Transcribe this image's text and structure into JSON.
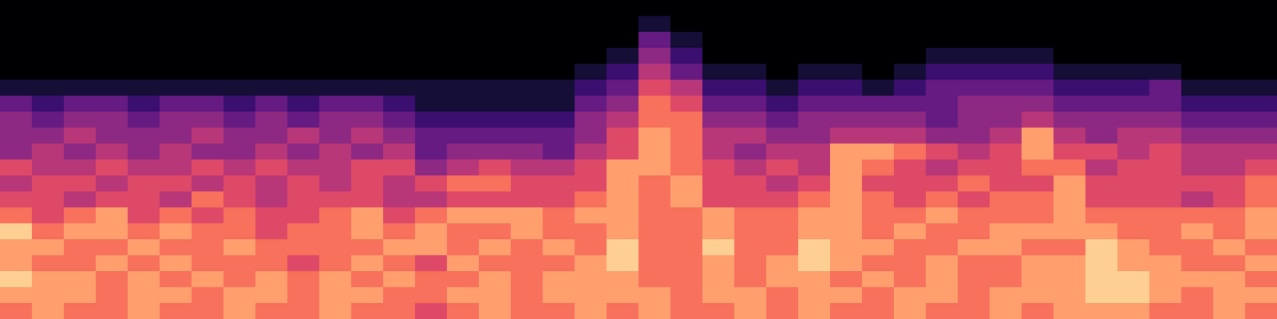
{
  "chart_data": {
    "type": "heatmap",
    "color": "magma",
    "zlim": [
      0,
      10
    ],
    "tick_labels": false,
    "cells": [
      [
        7,
        8,
        7,
        7,
        8,
        7,
        7,
        8,
        7,
        7,
        8,
        7,
        7,
        6,
        7,
        8,
        7,
        7,
        8,
        7,
        8,
        7,
        7,
        8,
        7,
        8,
        7,
        7,
        8,
        7,
        7,
        8,
        7,
        8,
        8,
        8,
        7,
        7,
        8,
        7
      ],
      [
        8,
        8,
        8,
        7,
        8,
        8,
        7,
        8,
        8,
        7,
        8,
        8,
        7,
        7,
        8,
        8,
        7,
        8,
        8,
        8,
        8,
        7,
        8,
        8,
        7,
        8,
        8,
        7,
        8,
        8,
        7,
        8,
        8,
        8,
        9,
        9,
        8,
        7,
        8,
        8
      ],
      [
        9,
        8,
        8,
        7,
        8,
        7,
        8,
        7,
        8,
        7,
        8,
        7,
        8,
        7,
        7,
        8,
        7,
        8,
        8,
        8,
        7,
        7,
        8,
        7,
        8,
        8,
        7,
        8,
        7,
        8,
        7,
        7,
        8,
        8,
        9,
        9,
        8,
        8,
        8,
        7
      ],
      [
        8,
        7,
        7,
        8,
        7,
        8,
        7,
        7,
        7,
        6,
        7,
        8,
        7,
        6,
        8,
        7,
        7,
        7,
        8,
        9,
        7,
        7,
        8,
        7,
        8,
        9,
        8,
        7,
        7,
        8,
        7,
        7,
        8,
        8,
        9,
        8,
        8,
        7,
        7,
        8
      ],
      [
        8,
        8,
        7,
        7,
        8,
        7,
        7,
        8,
        7,
        7,
        7,
        7,
        8,
        8,
        7,
        8,
        7,
        8,
        7,
        9,
        7,
        7,
        9,
        7,
        7,
        9,
        8,
        8,
        7,
        7,
        8,
        8,
        7,
        7,
        9,
        8,
        7,
        7,
        8,
        7
      ],
      [
        9,
        7,
        8,
        8,
        7,
        8,
        7,
        7,
        6,
        7,
        7,
        8,
        7,
        8,
        7,
        7,
        8,
        7,
        7,
        8,
        7,
        7,
        8,
        7,
        7,
        8,
        8,
        7,
        8,
        7,
        7,
        8,
        8,
        8,
        8,
        7,
        7,
        8,
        7,
        8
      ],
      [
        7,
        6,
        7,
        8,
        6,
        7,
        6,
        7,
        6,
        6,
        7,
        8,
        6,
        7,
        8,
        8,
        8,
        7,
        8,
        8,
        7,
        7,
        8,
        7,
        7,
        8,
        8,
        7,
        7,
        8,
        7,
        7,
        7,
        8,
        7,
        7,
        7,
        7,
        7,
        8
      ],
      [
        6,
        6,
        5,
        6,
        6,
        5,
        7,
        6,
        5,
        6,
        6,
        6,
        5,
        5,
        6,
        6,
        6,
        6,
        7,
        8,
        7,
        8,
        6,
        6,
        6,
        7,
        8,
        7,
        6,
        7,
        6,
        7,
        7,
        8,
        6,
        6,
        6,
        5,
        6,
        7
      ],
      [
        5,
        6,
        6,
        5,
        6,
        6,
        5,
        6,
        5,
        6,
        5,
        6,
        5,
        6,
        7,
        7,
        6,
        6,
        6,
        8,
        7,
        8,
        6,
        6,
        5,
        6,
        8,
        6,
        6,
        6,
        7,
        6,
        6,
        8,
        6,
        6,
        6,
        6,
        6,
        7
      ],
      [
        6,
        5,
        5,
        6,
        5,
        5,
        6,
        5,
        6,
        5,
        5,
        6,
        6,
        4,
        5,
        6,
        5,
        5,
        6,
        8,
        8,
        7,
        6,
        5,
        6,
        5,
        8,
        7,
        6,
        5,
        6,
        6,
        7,
        7,
        5,
        6,
        6,
        5,
        5,
        6
      ],
      [
        4,
        5,
        4,
        5,
        4,
        5,
        4,
        4,
        5,
        4,
        5,
        4,
        5,
        3,
        4,
        4,
        4,
        3,
        5,
        6,
        8,
        7,
        5,
        4,
        5,
        5,
        8,
        8,
        7,
        6,
        5,
        6,
        8,
        6,
        6,
        5,
        6,
        5,
        5,
        5
      ],
      [
        4,
        4,
        5,
        4,
        4,
        4,
        5,
        4,
        4,
        5,
        4,
        5,
        4,
        3,
        3,
        3,
        3,
        3,
        4,
        6,
        8,
        7,
        5,
        5,
        4,
        4,
        5,
        5,
        5,
        4,
        4,
        5,
        8,
        5,
        4,
        5,
        5,
        4,
        4,
        4
      ],
      [
        4,
        3,
        4,
        4,
        3,
        4,
        4,
        3,
        4,
        3,
        4,
        4,
        3,
        2,
        2,
        2,
        2,
        2,
        4,
        5,
        7,
        7,
        4,
        4,
        3,
        4,
        4,
        4,
        4,
        3,
        4,
        4,
        5,
        4,
        4,
        4,
        4,
        3,
        3,
        3
      ],
      [
        3,
        2,
        3,
        3,
        2,
        3,
        3,
        2,
        3,
        2,
        3,
        3,
        2,
        1,
        1,
        1,
        1,
        1,
        3,
        4,
        7,
        6,
        3,
        3,
        2,
        3,
        3,
        3,
        3,
        3,
        4,
        4,
        4,
        3,
        3,
        3,
        3,
        2,
        2,
        2
      ],
      [
        1,
        1,
        1,
        1,
        1,
        1,
        1,
        1,
        1,
        1,
        1,
        1,
        1,
        1,
        1,
        1,
        1,
        1,
        2,
        3,
        6,
        5,
        2,
        2,
        1,
        2,
        2,
        1,
        2,
        3,
        3,
        3,
        3,
        2,
        2,
        2,
        3,
        1,
        1,
        1
      ],
      [
        0,
        0,
        0,
        0,
        0,
        0,
        0,
        0,
        0,
        0,
        0,
        0,
        0,
        0,
        0,
        0,
        0,
        0,
        1,
        2,
        5,
        3,
        1,
        1,
        0,
        1,
        1,
        0,
        1,
        2,
        2,
        2,
        2,
        1,
        1,
        1,
        1,
        0,
        0,
        0
      ],
      [
        0,
        0,
        0,
        0,
        0,
        0,
        0,
        0,
        0,
        0,
        0,
        0,
        0,
        0,
        0,
        0,
        0,
        0,
        0,
        1,
        4,
        2,
        0,
        0,
        0,
        0,
        0,
        0,
        0,
        1,
        1,
        1,
        1,
        0,
        0,
        0,
        0,
        0,
        0,
        0
      ],
      [
        0,
        0,
        0,
        0,
        0,
        0,
        0,
        0,
        0,
        0,
        0,
        0,
        0,
        0,
        0,
        0,
        0,
        0,
        0,
        0,
        3,
        1,
        0,
        0,
        0,
        0,
        0,
        0,
        0,
        0,
        0,
        0,
        0,
        0,
        0,
        0,
        0,
        0,
        0,
        0
      ],
      [
        0,
        0,
        0,
        0,
        0,
        0,
        0,
        0,
        0,
        0,
        0,
        0,
        0,
        0,
        0,
        0,
        0,
        0,
        0,
        0,
        1,
        0,
        0,
        0,
        0,
        0,
        0,
        0,
        0,
        0,
        0,
        0,
        0,
        0,
        0,
        0,
        0,
        0,
        0,
        0
      ],
      [
        0,
        0,
        0,
        0,
        0,
        0,
        0,
        0,
        0,
        0,
        0,
        0,
        0,
        0,
        0,
        0,
        0,
        0,
        0,
        0,
        0,
        0,
        0,
        0,
        0,
        0,
        0,
        0,
        0,
        0,
        0,
        0,
        0,
        0,
        0,
        0,
        0,
        0,
        0,
        0
      ]
    ]
  }
}
